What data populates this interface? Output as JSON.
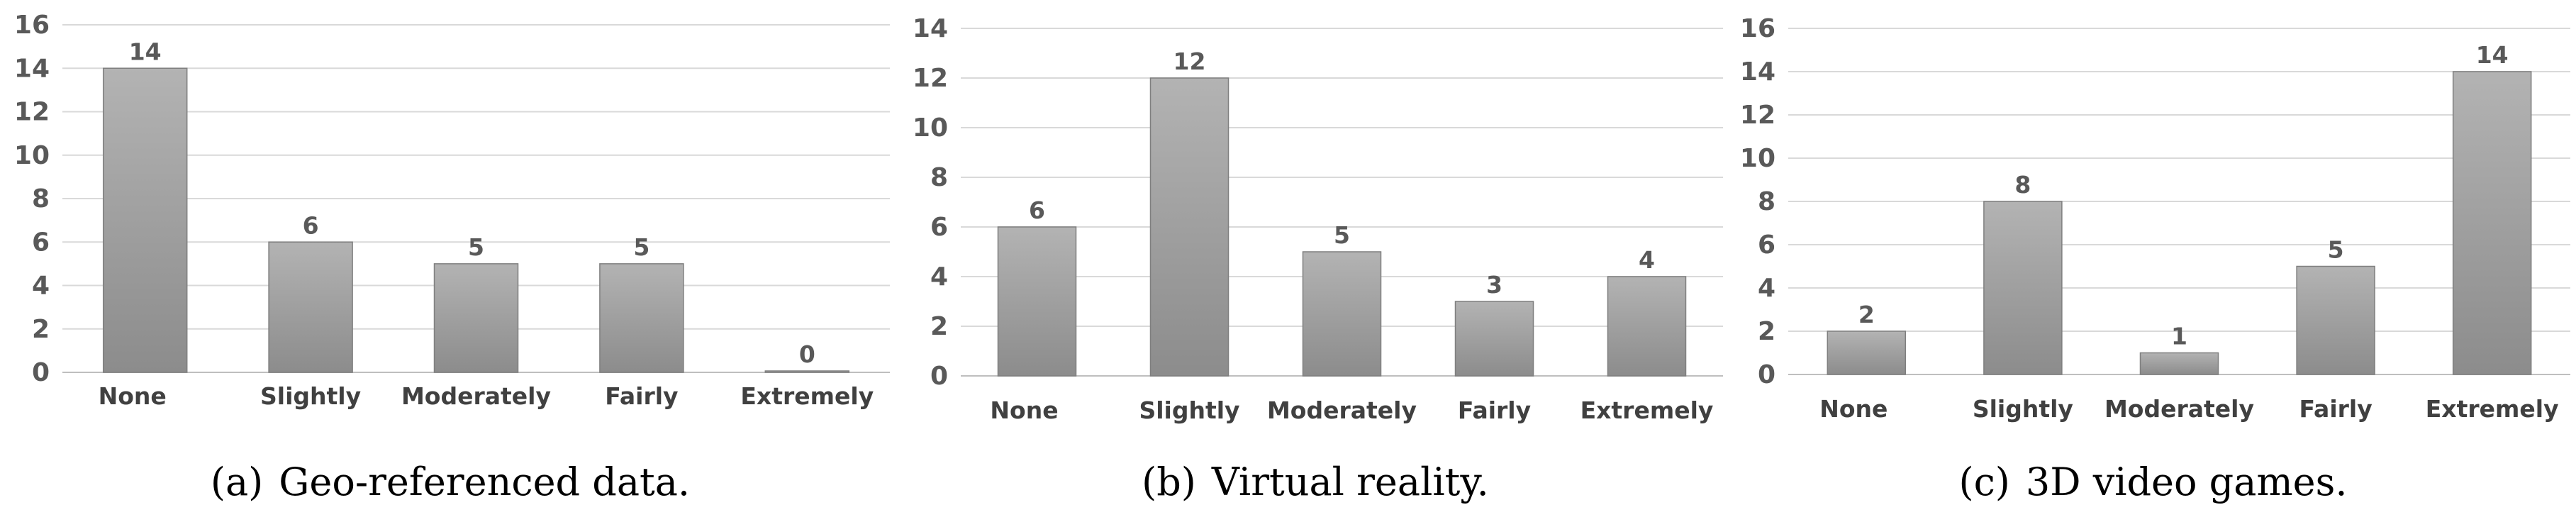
{
  "chart_data": [
    {
      "type": "bar",
      "caption_tag": "(a)",
      "caption": "Geo-referenced data.",
      "categories": [
        "None",
        "Slightly",
        "Moderately",
        "Fairly",
        "Extremely"
      ],
      "values": [
        14,
        6,
        5,
        5,
        0
      ],
      "ylim": [
        0,
        16
      ],
      "yticks": [
        0,
        2,
        4,
        6,
        8,
        10,
        12,
        14,
        16
      ],
      "grid": true,
      "bar_color": "#9e9e9e"
    },
    {
      "type": "bar",
      "caption_tag": "(b)",
      "caption": "Virtual reality.",
      "categories": [
        "None",
        "Slightly",
        "Moderately",
        "Fairly",
        "Extremely"
      ],
      "values": [
        6,
        12,
        5,
        3,
        4
      ],
      "ylim": [
        0,
        14
      ],
      "yticks": [
        0,
        2,
        4,
        6,
        8,
        10,
        12,
        14
      ],
      "grid": true,
      "bar_color": "#9e9e9e"
    },
    {
      "type": "bar",
      "caption_tag": "(c)",
      "caption": "3D video games.",
      "categories": [
        "None",
        "Slightly",
        "Moderately",
        "Fairly",
        "Extremely"
      ],
      "values": [
        2,
        8,
        1,
        5,
        14
      ],
      "ylim": [
        0,
        16
      ],
      "yticks": [
        0,
        2,
        4,
        6,
        8,
        10,
        12,
        14,
        16
      ],
      "grid": true,
      "bar_color": "#9e9e9e"
    }
  ]
}
